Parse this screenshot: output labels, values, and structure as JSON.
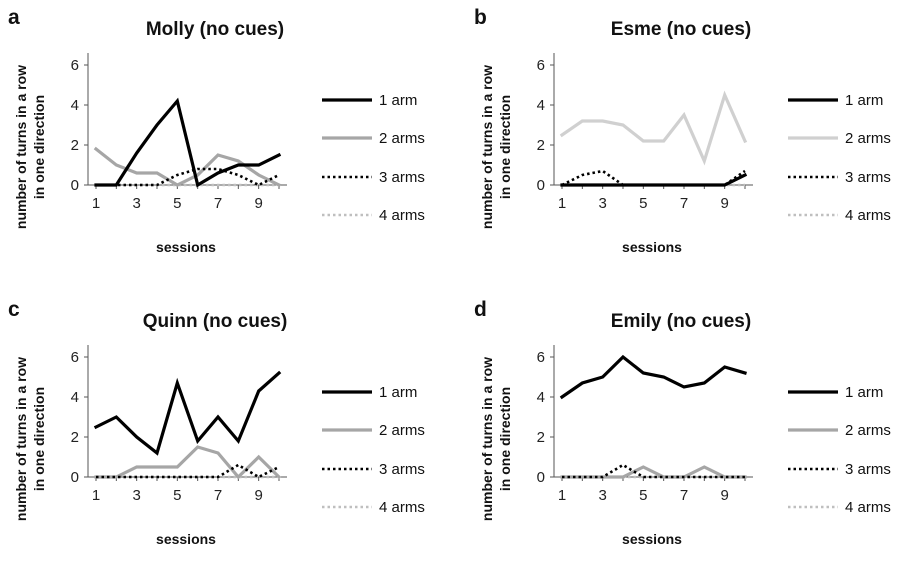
{
  "chart_data": [
    {
      "type": "line",
      "panel": "a",
      "title": "Molly (no cues)",
      "xlabel": "sessions",
      "ylabel": "number of turns in a row in one direction",
      "x": [
        1,
        2,
        3,
        4,
        5,
        6,
        7,
        8,
        9,
        10
      ],
      "xticks": [
        1,
        3,
        5,
        7,
        9
      ],
      "ylim": [
        0,
        7
      ],
      "yticks": [
        0,
        2,
        4,
        6
      ],
      "legend": "right",
      "series": [
        {
          "name": "1 arm",
          "values": [
            0,
            0,
            1.6,
            3,
            4.2,
            0,
            0.6,
            1,
            1,
            1.5
          ]
        },
        {
          "name": "2 arms",
          "values": [
            1.8,
            1,
            0.6,
            0.6,
            0,
            0.5,
            1.5,
            1.2,
            0.5,
            0
          ]
        },
        {
          "name": "3 arms",
          "values": [
            0,
            0,
            0,
            0,
            0.5,
            0.8,
            0.8,
            0.5,
            0,
            0.5
          ]
        },
        {
          "name": "4 arms",
          "values": [
            0,
            0,
            0,
            0,
            0,
            0,
            0,
            0,
            0,
            0
          ]
        }
      ]
    },
    {
      "type": "line",
      "panel": "b",
      "title": "Esme (no cues)",
      "xlabel": "sessions",
      "ylabel": "number of turns in a row in one direction",
      "x": [
        1,
        2,
        3,
        4,
        5,
        6,
        7,
        8,
        9,
        10
      ],
      "xticks": [
        1,
        3,
        5,
        7,
        9
      ],
      "ylim": [
        0,
        7
      ],
      "yticks": [
        0,
        2,
        4,
        6
      ],
      "legend": "right",
      "series": [
        {
          "name": "1 arm",
          "values": [
            0,
            0,
            0,
            0,
            0,
            0,
            0,
            0,
            0,
            0.5
          ]
        },
        {
          "name": "2 arms",
          "values": [
            2.5,
            3.2,
            3.2,
            3,
            2.2,
            2.2,
            3.5,
            1.2,
            4.5,
            2.2
          ]
        },
        {
          "name": "3 arms",
          "values": [
            0,
            0.5,
            0.7,
            0,
            0,
            0,
            0,
            0,
            0,
            0.7
          ]
        },
        {
          "name": "4 arms",
          "values": [
            0,
            0,
            0,
            0,
            0,
            0,
            0,
            0,
            0,
            0
          ]
        }
      ]
    },
    {
      "type": "line",
      "panel": "c",
      "title": "Quinn (no cues)",
      "xlabel": "sessions",
      "ylabel": "number of turns in a row in one direction",
      "x": [
        1,
        2,
        3,
        4,
        5,
        6,
        7,
        8,
        9,
        10
      ],
      "xticks": [
        1,
        3,
        5,
        7,
        9
      ],
      "ylim": [
        0,
        7
      ],
      "yticks": [
        0,
        2,
        4,
        6
      ],
      "legend": "right",
      "series": [
        {
          "name": "1 arm",
          "values": [
            2.5,
            3,
            2,
            1.2,
            4.7,
            1.8,
            3,
            1.8,
            4.3,
            5.2
          ]
        },
        {
          "name": "2 arms",
          "values": [
            0,
            0,
            0.5,
            0.5,
            0.5,
            1.5,
            1.2,
            0,
            1,
            0
          ]
        },
        {
          "name": "3 arms",
          "values": [
            0,
            0,
            0,
            0,
            0,
            0,
            0,
            0.6,
            0,
            0.5
          ]
        },
        {
          "name": "4 arms",
          "values": [
            0,
            0,
            0,
            0,
            0,
            0,
            0,
            0,
            0,
            0
          ]
        }
      ]
    },
    {
      "type": "line",
      "panel": "d",
      "title": "Emily (no cues)",
      "xlabel": "sessions",
      "ylabel": "number of turns in a row in one direction",
      "x": [
        1,
        2,
        3,
        4,
        5,
        6,
        7,
        8,
        9,
        10
      ],
      "xticks": [
        1,
        3,
        5,
        7,
        9
      ],
      "ylim": [
        0,
        7
      ],
      "yticks": [
        0,
        2,
        4,
        6
      ],
      "legend": "right",
      "series": [
        {
          "name": "1 arm",
          "values": [
            4,
            4.7,
            5,
            6,
            5.2,
            5,
            4.5,
            4.7,
            5.5,
            5.2
          ]
        },
        {
          "name": "2 arms",
          "values": [
            0,
            0,
            0,
            0,
            0.5,
            0,
            0,
            0.5,
            0,
            0
          ]
        },
        {
          "name": "3 arms",
          "values": [
            0,
            0,
            0,
            0.6,
            0,
            0,
            0,
            0,
            0,
            0
          ]
        },
        {
          "name": "4 arms",
          "values": [
            0,
            0,
            0,
            0,
            0,
            0,
            0,
            0,
            0,
            0
          ]
        }
      ]
    }
  ],
  "series_styles": [
    {
      "color": "#000000",
      "dash": "solid",
      "weight": "heavy"
    },
    {
      "color": "#a6a6a6",
      "dash": "solid",
      "weight": "heavy"
    },
    {
      "color": "#000000",
      "dash": "dotted",
      "weight": "medium"
    },
    {
      "color": "#bfbfbf",
      "dash": "dotted",
      "weight": "medium"
    }
  ],
  "panel_overrides": {
    "b": {
      "2 arms": "#d0d0d0"
    }
  },
  "colors": {
    "axis": "#555555",
    "text": "#111111"
  }
}
